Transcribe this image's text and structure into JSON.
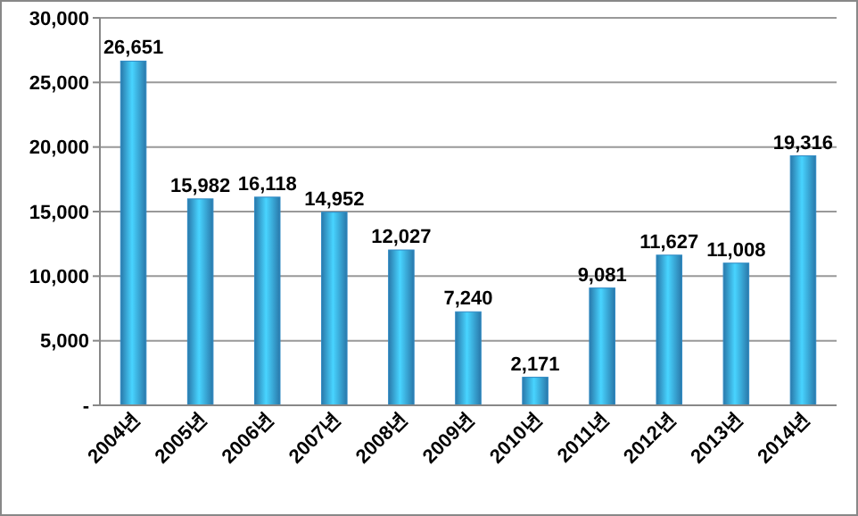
{
  "chart_data": {
    "type": "bar",
    "categories": [
      "2004년",
      "2005년",
      "2006년",
      "2007년",
      "2008년",
      "2009년",
      "2010년",
      "2011년",
      "2012년",
      "2013년",
      "2014년"
    ],
    "values": [
      26651,
      15982,
      16118,
      14952,
      12027,
      7240,
      2171,
      9081,
      11627,
      11008,
      19316
    ],
    "value_labels": [
      "26,651",
      "15,982",
      "16,118",
      "14,952",
      "12,027",
      "7,240",
      "2,171",
      "9,081",
      "11,627",
      "11,008",
      "19,316"
    ],
    "color": "#2f8ac4",
    "grid": "y",
    "ylim": [
      0,
      30000
    ],
    "yticks": [
      {
        "value": 0,
        "label": "-"
      },
      {
        "value": 5000,
        "label": "5,000"
      },
      {
        "value": 10000,
        "label": "10,000"
      },
      {
        "value": 15000,
        "label": "15,000"
      },
      {
        "value": 20000,
        "label": "20,000"
      },
      {
        "value": 25000,
        "label": "25,000"
      },
      {
        "value": 30000,
        "label": "30,000"
      }
    ]
  }
}
